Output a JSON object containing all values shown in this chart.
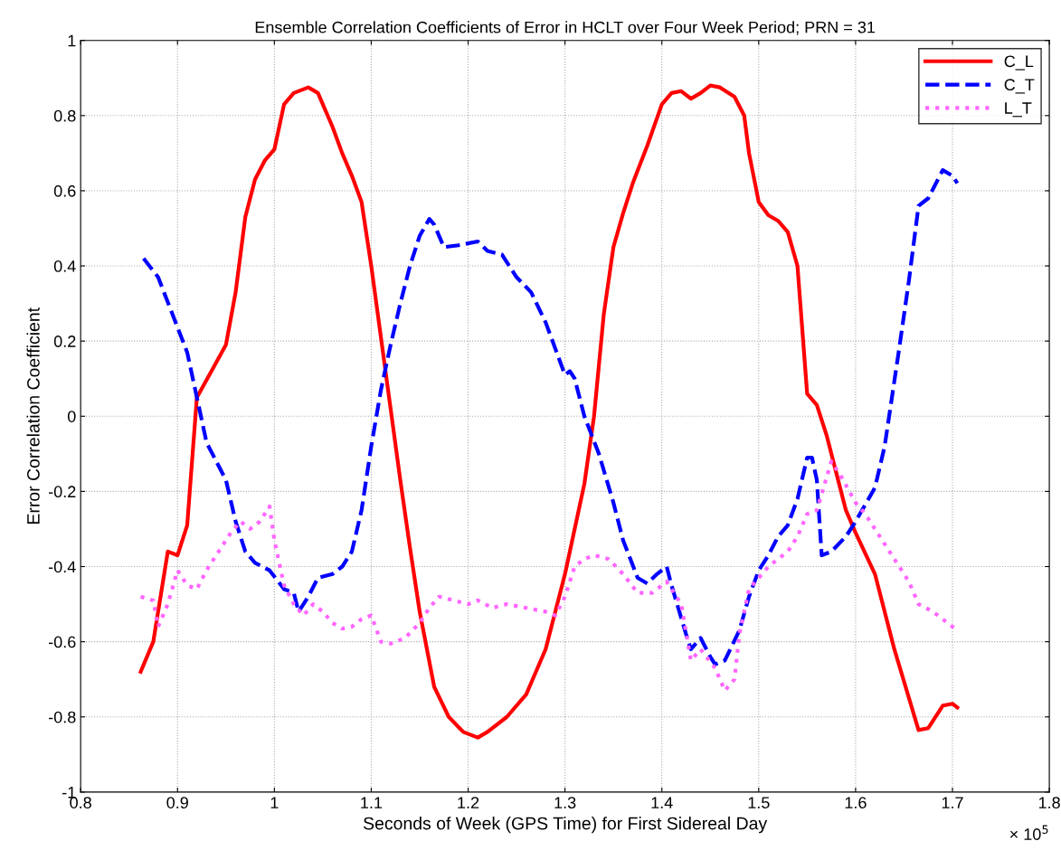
{
  "chart_data": {
    "type": "line",
    "title": "Ensemble Correlation Coefficients of Error in HCLT over Four Week Period; PRN = 31",
    "xlabel": "Seconds of Week (GPS Time) for First Sidereal Day",
    "ylabel": "Error Correlation Coefficient",
    "annotations": [
      "× 10$^{5}$"
    ],
    "xlim": [
      0.8,
      1.8
    ],
    "xticks": [
      0.8,
      0.9,
      1,
      1.1,
      1.2,
      1.3,
      1.4,
      1.5,
      1.6,
      1.7,
      1.8
    ],
    "ylim": [
      -1,
      1
    ],
    "yticks": [
      -1,
      -0.8,
      -0.6,
      -0.4,
      -0.2,
      0,
      0.2,
      0.4,
      0.6,
      0.8,
      1
    ],
    "grid": true,
    "legend": "top right",
    "series": [
      {
        "name": "C_L",
        "color": "#ff0000",
        "line_style": "solid",
        "x": [
          0.862,
          0.875,
          0.89,
          0.9,
          0.91,
          0.92,
          0.935,
          0.95,
          0.96,
          0.97,
          0.98,
          0.99,
          1.0,
          1.01,
          1.02,
          1.035,
          1.045,
          1.06,
          1.07,
          1.08,
          1.09,
          1.1,
          1.11,
          1.12,
          1.13,
          1.14,
          1.15,
          1.165,
          1.18,
          1.195,
          1.21,
          1.22,
          1.24,
          1.26,
          1.28,
          1.3,
          1.31,
          1.32,
          1.33,
          1.34,
          1.35,
          1.36,
          1.37,
          1.385,
          1.4,
          1.41,
          1.42,
          1.43,
          1.44,
          1.45,
          1.46,
          1.475,
          1.485,
          1.49,
          1.5,
          1.51,
          1.52,
          1.53,
          1.54,
          1.55,
          1.56,
          1.57,
          1.58,
          1.59,
          1.6,
          1.62,
          1.64,
          1.665,
          1.675,
          1.69,
          1.7,
          1.705
        ],
        "values": [
          -0.68,
          -0.6,
          -0.36,
          -0.37,
          -0.29,
          0.05,
          0.12,
          0.19,
          0.33,
          0.53,
          0.63,
          0.68,
          0.71,
          0.83,
          0.86,
          0.875,
          0.86,
          0.77,
          0.7,
          0.64,
          0.57,
          0.4,
          0.21,
          0.02,
          -0.17,
          -0.35,
          -0.52,
          -0.72,
          -0.8,
          -0.84,
          -0.855,
          -0.84,
          -0.8,
          -0.74,
          -0.62,
          -0.42,
          -0.3,
          -0.18,
          0.0,
          0.27,
          0.45,
          0.54,
          0.62,
          0.72,
          0.83,
          0.86,
          0.865,
          0.845,
          0.86,
          0.88,
          0.875,
          0.85,
          0.8,
          0.7,
          0.57,
          0.535,
          0.52,
          0.49,
          0.4,
          0.06,
          0.03,
          -0.05,
          -0.15,
          -0.25,
          -0.31,
          -0.42,
          -0.62,
          -0.835,
          -0.83,
          -0.77,
          -0.765,
          -0.775
        ]
      },
      {
        "name": "C_T",
        "color": "#0000ff",
        "line_style": "dashed",
        "x": [
          0.865,
          0.88,
          0.895,
          0.91,
          0.92,
          0.93,
          0.94,
          0.95,
          0.96,
          0.97,
          0.98,
          0.995,
          1.01,
          1.02,
          1.025,
          1.035,
          1.045,
          1.06,
          1.07,
          1.08,
          1.09,
          1.1,
          1.11,
          1.12,
          1.13,
          1.14,
          1.15,
          1.16,
          1.165,
          1.175,
          1.19,
          1.21,
          1.22,
          1.235,
          1.25,
          1.265,
          1.28,
          1.29,
          1.3,
          1.305,
          1.31,
          1.32,
          1.335,
          1.35,
          1.36,
          1.375,
          1.385,
          1.395,
          1.405,
          1.41,
          1.425,
          1.43,
          1.44,
          1.45,
          1.455,
          1.465,
          1.48,
          1.49,
          1.5,
          1.51,
          1.52,
          1.53,
          1.54,
          1.55,
          1.555,
          1.56,
          1.565,
          1.575,
          1.59,
          1.6,
          1.62,
          1.63,
          1.645,
          1.655,
          1.665,
          1.675,
          1.69,
          1.7,
          1.705
        ],
        "values": [
          0.42,
          0.37,
          0.27,
          0.17,
          0.05,
          -0.07,
          -0.12,
          -0.17,
          -0.28,
          -0.36,
          -0.39,
          -0.41,
          -0.46,
          -0.47,
          -0.52,
          -0.48,
          -0.43,
          -0.42,
          -0.4,
          -0.36,
          -0.25,
          -0.08,
          0.07,
          0.19,
          0.3,
          0.4,
          0.48,
          0.525,
          0.51,
          0.45,
          0.455,
          0.465,
          0.44,
          0.43,
          0.37,
          0.33,
          0.25,
          0.18,
          0.11,
          0.12,
          0.1,
          0.0,
          -0.1,
          -0.23,
          -0.33,
          -0.43,
          -0.445,
          -0.42,
          -0.4,
          -0.45,
          -0.58,
          -0.62,
          -0.59,
          -0.64,
          -0.66,
          -0.65,
          -0.57,
          -0.48,
          -0.41,
          -0.37,
          -0.32,
          -0.29,
          -0.22,
          -0.11,
          -0.11,
          -0.17,
          -0.37,
          -0.36,
          -0.32,
          -0.28,
          -0.19,
          -0.08,
          0.18,
          0.36,
          0.56,
          0.58,
          0.655,
          0.64,
          0.62
        ]
      },
      {
        "name": "L_T",
        "color": "#ff66ff",
        "line_style": "dotted",
        "x": [
          0.862,
          0.875,
          0.88,
          0.89,
          0.9,
          0.91,
          0.92,
          0.93,
          0.94,
          0.955,
          0.965,
          0.975,
          0.985,
          0.995,
          1.0,
          1.01,
          1.02,
          1.03,
          1.04,
          1.05,
          1.06,
          1.07,
          1.08,
          1.09,
          1.1,
          1.11,
          1.12,
          1.135,
          1.15,
          1.16,
          1.17,
          1.185,
          1.2,
          1.21,
          1.225,
          1.24,
          1.26,
          1.28,
          1.29,
          1.3,
          1.31,
          1.32,
          1.33,
          1.345,
          1.36,
          1.375,
          1.39,
          1.405,
          1.42,
          1.43,
          1.44,
          1.455,
          1.465,
          1.475,
          1.48,
          1.49,
          1.5,
          1.51,
          1.52,
          1.53,
          1.54,
          1.55,
          1.56,
          1.575,
          1.585,
          1.6,
          1.61,
          1.625,
          1.64,
          1.655,
          1.665,
          1.68,
          1.695,
          1.705
        ],
        "values": [
          -0.48,
          -0.49,
          -0.56,
          -0.5,
          -0.41,
          -0.45,
          -0.46,
          -0.41,
          -0.37,
          -0.31,
          -0.28,
          -0.3,
          -0.28,
          -0.24,
          -0.33,
          -0.45,
          -0.5,
          -0.53,
          -0.5,
          -0.52,
          -0.55,
          -0.565,
          -0.56,
          -0.54,
          -0.53,
          -0.6,
          -0.605,
          -0.59,
          -0.55,
          -0.51,
          -0.48,
          -0.49,
          -0.5,
          -0.49,
          -0.51,
          -0.5,
          -0.51,
          -0.52,
          -0.53,
          -0.48,
          -0.4,
          -0.38,
          -0.37,
          -0.38,
          -0.42,
          -0.47,
          -0.47,
          -0.44,
          -0.5,
          -0.65,
          -0.62,
          -0.67,
          -0.73,
          -0.7,
          -0.58,
          -0.46,
          -0.43,
          -0.4,
          -0.38,
          -0.36,
          -0.32,
          -0.26,
          -0.25,
          -0.12,
          -0.16,
          -0.23,
          -0.26,
          -0.32,
          -0.38,
          -0.44,
          -0.5,
          -0.52,
          -0.55,
          -0.57
        ]
      }
    ]
  }
}
